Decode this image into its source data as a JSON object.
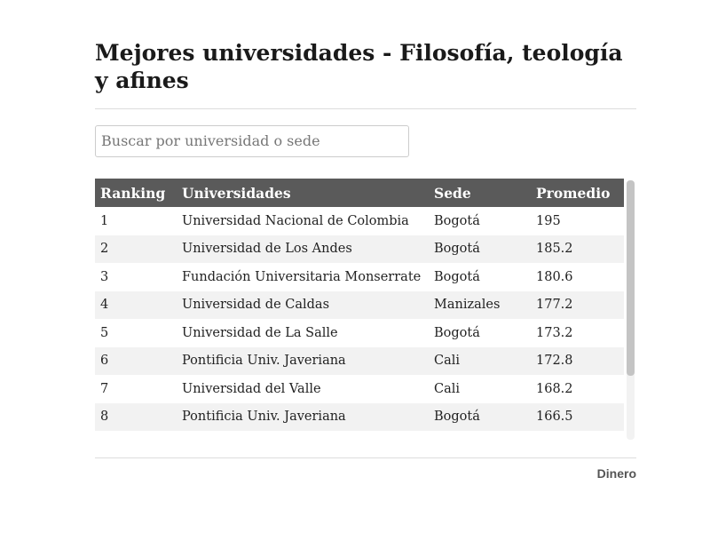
{
  "header": {
    "title": "Mejores universidades - Filosofía, teología y afines"
  },
  "search": {
    "placeholder": "Buscar por universidad o sede"
  },
  "table": {
    "columns": [
      "Ranking",
      "Universidades",
      "Sede",
      "Promedio"
    ],
    "rows": [
      [
        "1",
        "Universidad Nacional de Colombia",
        "Bogotá",
        "195"
      ],
      [
        "2",
        "Universidad de Los Andes",
        "Bogotá",
        "185.2"
      ],
      [
        "3",
        "Fundación Universitaria Monserrate",
        "Bogotá",
        "180.6"
      ],
      [
        "4",
        "Universidad de Caldas",
        "Manizales",
        "177.2"
      ],
      [
        "5",
        "Universidad de La Salle",
        "Bogotá",
        "173.2"
      ],
      [
        "6",
        "Pontificia Univ. Javeriana",
        "Cali",
        "172.8"
      ],
      [
        "7",
        "Universidad del Valle",
        "Cali",
        "168.2"
      ],
      [
        "8",
        "Pontificia Univ. Javeriana",
        "Bogotá",
        "166.5"
      ]
    ]
  },
  "footer": {
    "source": "Dinero"
  }
}
